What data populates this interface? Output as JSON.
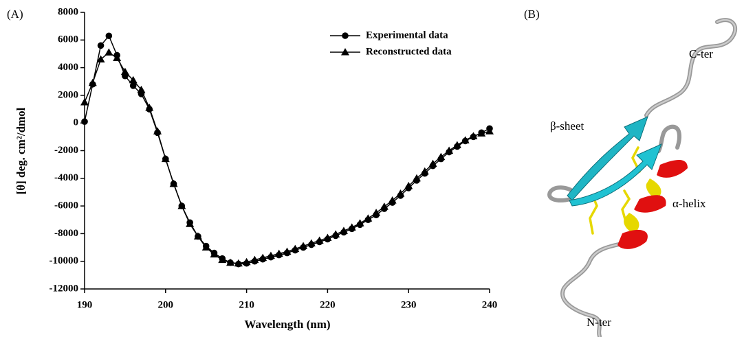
{
  "chart_data": {
    "type": "line",
    "x_label": "Wavelength (nm)",
    "y_label": "[θ] deg. cm²/dmol",
    "x": [
      190,
      191,
      192,
      193,
      194,
      195,
      196,
      197,
      198,
      199,
      200,
      201,
      202,
      203,
      204,
      205,
      206,
      207,
      208,
      209,
      210,
      211,
      212,
      213,
      214,
      215,
      216,
      217,
      218,
      219,
      220,
      221,
      222,
      223,
      224,
      225,
      226,
      227,
      228,
      229,
      230,
      231,
      232,
      233,
      234,
      235,
      236,
      237,
      238,
      239,
      240
    ],
    "series": [
      {
        "name": "Experimental data",
        "color": "#000000",
        "marker": "circle",
        "values": [
          100,
          2800,
          5600,
          6300,
          4900,
          3400,
          2700,
          2100,
          1000,
          -700,
          -2600,
          -4400,
          -6000,
          -7200,
          -8200,
          -8900,
          -9400,
          -9800,
          -10100,
          -10200,
          -10150,
          -10000,
          -9850,
          -9700,
          -9550,
          -9400,
          -9200,
          -9000,
          -8800,
          -8600,
          -8400,
          -8150,
          -7900,
          -7650,
          -7350,
          -7000,
          -6650,
          -6200,
          -5750,
          -5250,
          -4700,
          -4150,
          -3650,
          -3100,
          -2600,
          -2100,
          -1700,
          -1300,
          -1000,
          -700,
          -400
        ]
      },
      {
        "name": "Reconstructed data",
        "color": "#000000",
        "marker": "triangle",
        "values": [
          1500,
          2900,
          4600,
          5100,
          4700,
          3700,
          3100,
          2400,
          1100,
          -600,
          -2600,
          -4400,
          -6000,
          -7300,
          -8200,
          -9000,
          -9500,
          -9900,
          -10100,
          -10150,
          -10050,
          -9900,
          -9750,
          -9600,
          -9450,
          -9300,
          -9100,
          -8900,
          -8700,
          -8500,
          -8300,
          -8050,
          -7800,
          -7550,
          -7250,
          -6900,
          -6500,
          -6050,
          -5600,
          -5100,
          -4550,
          -4000,
          -3500,
          -2950,
          -2450,
          -2000,
          -1600,
          -1250,
          -950,
          -750,
          -600
        ]
      }
    ],
    "xlim": [
      190,
      240
    ],
    "xticks": [
      190,
      200,
      210,
      220,
      230,
      240
    ],
    "ylim": [
      -12000,
      8000
    ],
    "yticks": [
      -12000,
      -10000,
      -8000,
      -6000,
      -4000,
      -2000,
      0,
      2000,
      4000,
      6000,
      8000
    ],
    "grid": false,
    "legend": "upper right"
  },
  "panels": {
    "a": "(A)",
    "b": "(B)"
  },
  "structure_labels": {
    "c_ter": "C-ter",
    "beta": "β-sheet",
    "alpha": "α-helix",
    "n_ter": "N-ter"
  }
}
